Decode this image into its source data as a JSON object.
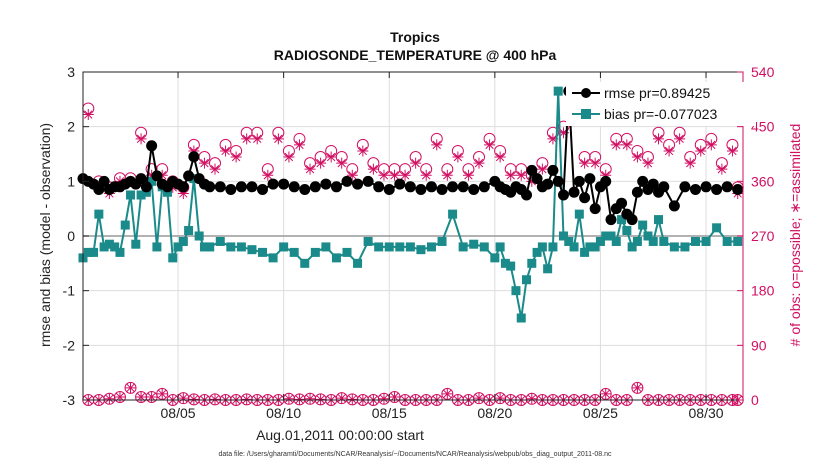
{
  "chart_data": {
    "type": "line",
    "title": "Tropics",
    "subtitle": "RADIOSONDE_TEMPERATURE @ 400 hPa",
    "xlabel": "Aug.01,2011 00:00:00 start",
    "ylabel": "rmse and bias (model - observation)",
    "y2label": "# of obs: o=possible; ∗=assimilated",
    "footer": "data file: /Users/gharamti/Documents/NCAR/Reanalysis/~/Documents/NCAR/Reanalysis/webpub/obs_diag_output_2011-08.nc",
    "xlim": [
      0.5,
      31.75
    ],
    "ylim": [
      -3,
      3
    ],
    "y2lim": [
      0,
      540
    ],
    "xticks": [
      5,
      10,
      15,
      20,
      25,
      30
    ],
    "xtick_labels": [
      "08/05",
      "08/10",
      "08/15",
      "08/20",
      "08/25",
      "08/30"
    ],
    "yticks": [
      -3,
      -2,
      -1,
      0,
      1,
      2,
      3
    ],
    "ytick_labels": [
      "-3",
      "-2",
      "-1",
      "0",
      "1",
      "2",
      "3"
    ],
    "y2ticks": [
      0,
      90,
      180,
      270,
      360,
      450,
      540
    ],
    "y2tick_labels": [
      "0",
      "90",
      "180",
      "270",
      "360",
      "450",
      "540"
    ],
    "grid": true,
    "legend_position": "top-right",
    "zero_line": 0,
    "colors": {
      "rmse": "#000000",
      "bias": "#1a8a8a",
      "obs": "#d10f62",
      "grid": "#dddddd",
      "zero": "#999999"
    },
    "series": [
      {
        "name": "rmse pr=0.89425",
        "axis": "left",
        "marker": "circle",
        "x": [
          0.5,
          0.75,
          1.0,
          1.25,
          1.5,
          1.75,
          2.0,
          2.25,
          2.5,
          2.75,
          3.0,
          3.25,
          3.5,
          3.75,
          4.0,
          4.25,
          4.5,
          4.75,
          5.0,
          5.25,
          5.5,
          5.75,
          6.0,
          6.25,
          6.5,
          7.0,
          7.5,
          8.0,
          8.5,
          9.0,
          9.5,
          10.0,
          10.5,
          11.0,
          11.5,
          12.0,
          12.5,
          13.0,
          13.5,
          14.0,
          14.5,
          15.0,
          15.5,
          16.0,
          16.5,
          17.0,
          17.5,
          18.0,
          18.5,
          19.0,
          19.5,
          20.0,
          20.25,
          20.5,
          20.75,
          21.0,
          21.25,
          21.5,
          21.75,
          22.0,
          22.25,
          22.5,
          22.75,
          23.0,
          23.25,
          23.5,
          23.75,
          24.0,
          24.25,
          24.5,
          24.75,
          25.0,
          25.25,
          25.5,
          25.75,
          26.0,
          26.25,
          26.5,
          26.75,
          27.0,
          27.25,
          27.5,
          27.75,
          28.0,
          28.5,
          29.0,
          29.5,
          30.0,
          30.5,
          31.0,
          31.5
        ],
        "values": [
          1.05,
          1.0,
          0.95,
          0.85,
          1.0,
          0.85,
          0.9,
          0.9,
          0.95,
          1.0,
          0.95,
          1.05,
          0.9,
          1.65,
          1.1,
          0.95,
          0.9,
          1.0,
          0.95,
          0.9,
          1.1,
          1.45,
          1.05,
          0.95,
          0.9,
          0.9,
          0.85,
          0.9,
          0.9,
          0.85,
          0.95,
          0.95,
          0.9,
          0.85,
          0.9,
          0.95,
          0.9,
          1.0,
          0.95,
          1.0,
          0.9,
          0.85,
          0.95,
          0.9,
          0.85,
          0.9,
          0.85,
          0.9,
          0.9,
          0.85,
          0.9,
          1.0,
          0.9,
          0.85,
          0.8,
          0.9,
          0.85,
          0.75,
          1.2,
          1.05,
          0.9,
          0.95,
          1.2,
          1.0,
          0.75,
          2.65,
          0.8,
          1.0,
          0.7,
          1.05,
          0.5,
          0.9,
          1.0,
          0.3,
          0.5,
          0.6,
          0.4,
          0.3,
          0.8,
          1.0,
          0.85,
          0.95,
          0.8,
          0.9,
          0.55,
          0.9,
          0.85,
          0.9,
          0.85,
          0.9,
          0.85
        ]
      },
      {
        "name": "bias pr=-0.077023",
        "axis": "left",
        "marker": "square",
        "x": [
          0.5,
          0.75,
          1.0,
          1.25,
          1.5,
          1.75,
          2.0,
          2.25,
          2.5,
          2.75,
          3.0,
          3.25,
          3.5,
          3.75,
          4.0,
          4.25,
          4.5,
          4.75,
          5.0,
          5.25,
          5.5,
          5.75,
          6.0,
          6.25,
          6.5,
          7.0,
          7.5,
          8.0,
          8.5,
          9.0,
          9.5,
          10.0,
          10.5,
          11.0,
          11.5,
          12.0,
          12.5,
          13.0,
          13.5,
          14.0,
          14.5,
          15.0,
          15.5,
          16.0,
          16.5,
          17.0,
          17.5,
          18.0,
          18.5,
          19.0,
          19.5,
          20.0,
          20.25,
          20.5,
          20.75,
          21.0,
          21.25,
          21.5,
          21.75,
          22.0,
          22.25,
          22.5,
          22.75,
          23.0,
          23.25,
          23.5,
          23.75,
          24.0,
          24.25,
          24.5,
          24.75,
          25.0,
          25.25,
          25.5,
          25.75,
          26.0,
          26.25,
          26.5,
          26.75,
          27.0,
          27.25,
          27.5,
          27.75,
          28.0,
          28.5,
          29.0,
          29.5,
          30.0,
          30.5,
          31.0,
          31.5
        ],
        "values": [
          -0.4,
          -0.3,
          -0.3,
          0.4,
          -0.2,
          -0.15,
          -0.2,
          -0.3,
          0.2,
          0.75,
          -0.15,
          0.75,
          0.8,
          1.0,
          -0.2,
          0.9,
          0.8,
          -0.4,
          -0.2,
          -0.1,
          0.1,
          1.05,
          0.0,
          -0.2,
          -0.2,
          -0.1,
          -0.2,
          -0.2,
          -0.25,
          -0.3,
          -0.4,
          -0.2,
          -0.3,
          -0.5,
          -0.3,
          -0.2,
          -0.4,
          -0.3,
          -0.5,
          -0.1,
          -0.2,
          -0.2,
          -0.2,
          -0.2,
          -0.25,
          -0.2,
          -0.1,
          0.4,
          -0.2,
          -0.15,
          -0.2,
          -0.4,
          -0.2,
          -0.5,
          -0.55,
          -1.0,
          -1.5,
          -0.8,
          -0.5,
          -0.3,
          -0.2,
          -0.6,
          -0.2,
          2.65,
          0.0,
          -0.1,
          -0.2,
          0.4,
          -0.3,
          -0.2,
          -0.2,
          -0.1,
          0.0,
          0.0,
          -0.1,
          0.3,
          0.1,
          -0.2,
          -0.1,
          0.2,
          0.0,
          -0.1,
          0.3,
          -0.1,
          -0.2,
          -0.2,
          -0.1,
          -0.1,
          0.15,
          -0.1,
          -0.1
        ]
      },
      {
        "name": "# possible obs",
        "axis": "right",
        "marker": "open-circle",
        "x": [
          0.75,
          1.25,
          1.75,
          2.25,
          2.75,
          3.25,
          3.75,
          4.25,
          4.75,
          5.25,
          5.75,
          6.25,
          6.75,
          7.25,
          7.75,
          8.25,
          8.75,
          9.25,
          9.75,
          10.25,
          10.75,
          11.25,
          11.75,
          12.25,
          12.75,
          13.25,
          13.75,
          14.25,
          14.75,
          15.25,
          15.75,
          16.25,
          16.75,
          17.25,
          17.75,
          18.25,
          18.75,
          19.25,
          19.75,
          20.25,
          20.75,
          21.25,
          21.75,
          22.25,
          22.75,
          23.25,
          23.75,
          24.25,
          24.75,
          25.25,
          25.75,
          26.25,
          26.75,
          27.25,
          27.75,
          28.25,
          28.75,
          29.25,
          29.75,
          30.25,
          30.75,
          31.25,
          31.5
        ],
        "values": [
          480,
          360,
          350,
          365,
          365,
          440,
          380,
          380,
          360,
          350,
          420,
          400,
          390,
          420,
          410,
          440,
          440,
          380,
          440,
          410,
          430,
          390,
          400,
          410,
          400,
          380,
          420,
          390,
          380,
          380,
          380,
          400,
          380,
          430,
          380,
          410,
          380,
          400,
          430,
          410,
          380,
          380,
          370,
          390,
          440,
          450,
          470,
          400,
          400,
          380,
          430,
          430,
          410,
          400,
          440,
          420,
          440,
          400,
          420,
          430,
          390,
          420,
          350
        ],
        "low_values": [
          0,
          0,
          2,
          5,
          20,
          5,
          5,
          10,
          0,
          3,
          1,
          0,
          1,
          0,
          0,
          1,
          0,
          0,
          0,
          2,
          1,
          2,
          1,
          0,
          3,
          1,
          0,
          0,
          2,
          5,
          0,
          0,
          0,
          0,
          10,
          0,
          0,
          3,
          0,
          3,
          0,
          0,
          2,
          0,
          0,
          0,
          0,
          0,
          0,
          10,
          0,
          0,
          20,
          0,
          0,
          0,
          0,
          0,
          0,
          0,
          0,
          0,
          0
        ]
      },
      {
        "name": "# assimilated obs",
        "axis": "right",
        "marker": "star",
        "x": [
          0.75,
          1.25,
          1.75,
          2.25,
          2.75,
          3.25,
          3.75,
          4.25,
          4.75,
          5.25,
          5.75,
          6.25,
          6.75,
          7.25,
          7.75,
          8.25,
          8.75,
          9.25,
          9.75,
          10.25,
          10.75,
          11.25,
          11.75,
          12.25,
          12.75,
          13.25,
          13.75,
          14.25,
          14.75,
          15.25,
          15.75,
          16.25,
          16.75,
          17.25,
          17.75,
          18.25,
          18.75,
          19.25,
          19.75,
          20.25,
          20.75,
          21.25,
          21.75,
          22.25,
          22.75,
          23.25,
          23.75,
          24.25,
          24.75,
          25.25,
          25.75,
          26.25,
          26.75,
          27.25,
          27.75,
          28.25,
          28.75,
          29.25,
          29.75,
          30.25,
          30.75,
          31.25,
          31.5
        ],
        "values": [
          470,
          350,
          340,
          360,
          360,
          430,
          370,
          370,
          350,
          340,
          410,
          390,
          380,
          410,
          400,
          430,
          430,
          370,
          430,
          400,
          420,
          380,
          390,
          400,
          390,
          370,
          410,
          380,
          370,
          370,
          370,
          390,
          370,
          420,
          370,
          400,
          370,
          390,
          420,
          400,
          370,
          370,
          360,
          380,
          430,
          440,
          460,
          390,
          390,
          370,
          420,
          420,
          400,
          390,
          430,
          410,
          430,
          390,
          410,
          420,
          380,
          410,
          340
        ],
        "low_values": [
          0,
          0,
          2,
          5,
          20,
          5,
          5,
          10,
          0,
          3,
          1,
          0,
          1,
          0,
          0,
          1,
          0,
          0,
          0,
          2,
          1,
          2,
          1,
          0,
          3,
          1,
          0,
          0,
          2,
          5,
          0,
          0,
          0,
          0,
          10,
          0,
          0,
          3,
          0,
          3,
          0,
          0,
          2,
          0,
          0,
          0,
          0,
          0,
          0,
          10,
          0,
          0,
          20,
          0,
          0,
          0,
          0,
          0,
          0,
          0,
          0,
          0,
          0
        ]
      }
    ]
  }
}
